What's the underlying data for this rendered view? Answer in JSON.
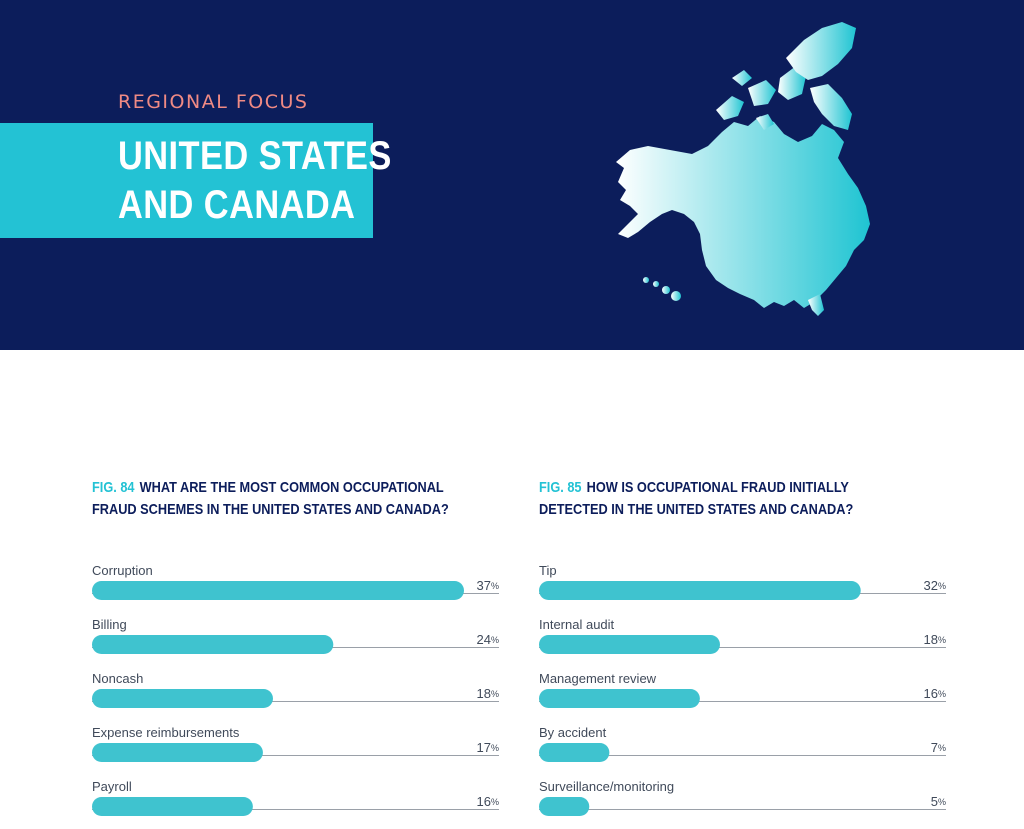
{
  "header": {
    "eyebrow": "REGIONAL FOCUS",
    "title_line1": "UNITED STATES",
    "title_line2": "AND CANADA"
  },
  "colors": {
    "navy": "#0c1d5b",
    "cyan": "#23c2d4",
    "bar": "#3fc3cf",
    "coral": "#f08a84"
  },
  "chart_data": [
    {
      "type": "bar",
      "figure": "FIG. 84",
      "title": "WHAT ARE THE MOST COMMON OCCUPATIONAL FRAUD SCHEMES IN THE UNITED STATES AND CANADA?",
      "categories": [
        "Corruption",
        "Billing",
        "Noncash",
        "Expense reimbursements",
        "Payroll"
      ],
      "values": [
        37,
        24,
        18,
        17,
        16
      ],
      "value_suffix": "%"
    },
    {
      "type": "bar",
      "figure": "FIG. 85",
      "title": "HOW IS OCCUPATIONAL FRAUD INITIALLY DETECTED IN THE UNITED STATES AND CANADA?",
      "categories": [
        "Tip",
        "Internal audit",
        "Management review",
        "By accident",
        "Surveillance/monitoring"
      ],
      "values": [
        32,
        18,
        16,
        7,
        5
      ],
      "value_suffix": "%"
    }
  ]
}
